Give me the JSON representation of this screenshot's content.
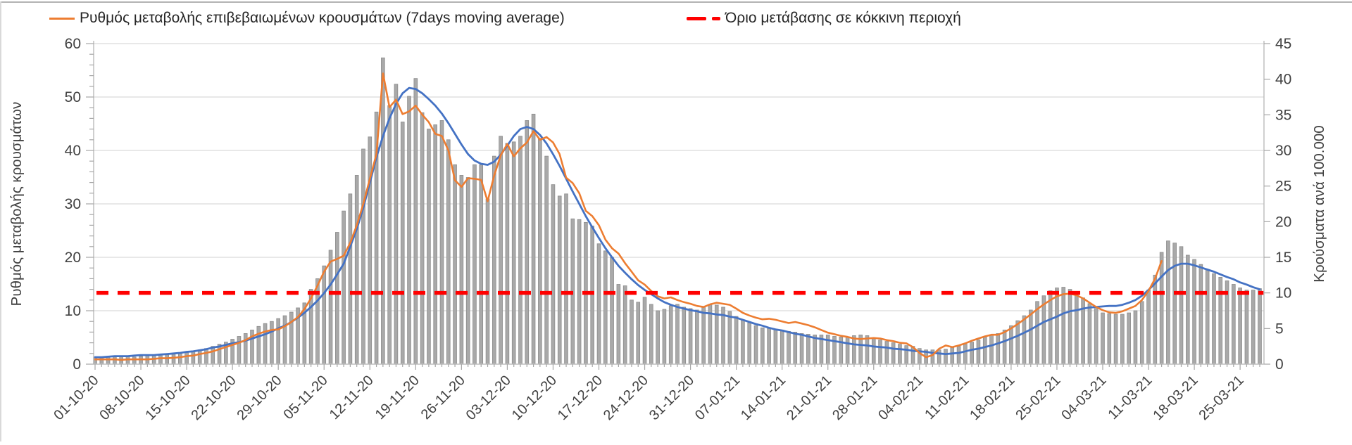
{
  "legend": {
    "items": [
      {
        "label": "Ρυθμός μεταβολής επιβεβαιωμένων κρουσμάτων (7days moving average)",
        "marker": "orange-line"
      },
      {
        "label": "Όριο μετάβασης σε κόκκινη περιοχή",
        "marker": "red-dashed-line"
      }
    ]
  },
  "colors": {
    "bar_fill": "#A9A9A9",
    "bar_stroke": "#8C8C8C",
    "moving_average_line": "#ED7D31",
    "trend_line": "#4472C4",
    "threshold_line": "#FF0000",
    "gridline": "#D9D9D9",
    "axis_line": "#BFBFBF",
    "tick_mark": "#A6A6A6",
    "tick_text": "#404040"
  },
  "chart_data": {
    "type": "combo_bar_line",
    "title": "",
    "grid": "horizontal gridlines at left-axis major ticks",
    "legend_position": "top",
    "x_axis": {
      "label": "",
      "unit": "daily points, weekly labeled ticks",
      "tick_labels": [
        "01-10-20",
        "08-10-20",
        "15-10-20",
        "22-10-20",
        "29-10-20",
        "05-11-20",
        "12-11-20",
        "19-11-20",
        "26-11-20",
        "03-12-20",
        "10-12-20",
        "17-12-20",
        "24-12-20",
        "31-12-20",
        "07-01-21",
        "14-01-21",
        "21-01-21",
        "28-01-21",
        "04-02-21",
        "11-02-21",
        "18-02-21",
        "25-02-21",
        "04-03-21",
        "11-03-21",
        "18-03-21",
        "25-03-21"
      ]
    },
    "y_axis_left": {
      "label": "Ρυθμός μεταβολής κρουσμάτων",
      "min": 0,
      "max": 60,
      "ticks": [
        0,
        10,
        20,
        30,
        40,
        50,
        60
      ],
      "minor_tick_step": 2
    },
    "y_axis_right": {
      "label": "Κρούσματα ανά 100.000",
      "min": 0,
      "max": 45,
      "ticks": [
        0,
        5,
        10,
        15,
        20,
        25,
        30,
        35,
        40,
        45
      ]
    },
    "threshold_line": {
      "label": "Όριο μετάβασης σε κόκκινη περιοχή",
      "axis": "right",
      "value": 10,
      "color": "#FF0000",
      "style": "dashed"
    },
    "bars": {
      "name": "Κρούσματα ανά 100.000 (gray daily bars)",
      "axis": "right",
      "values": [
        1.0,
        1.0,
        1.1,
        1.0,
        1.1,
        1.1,
        1.0,
        1.1,
        1.2,
        1.2,
        1.3,
        1.3,
        1.4,
        1.5,
        1.6,
        1.8,
        2.0,
        2.2,
        2.5,
        2.8,
        3.1,
        3.5,
        3.9,
        4.3,
        4.8,
        5.3,
        5.7,
        6.0,
        6.4,
        6.8,
        7.3,
        7.9,
        8.6,
        10.5,
        12.0,
        13.8,
        16.0,
        18.5,
        21.5,
        23.9,
        26.5,
        30.2,
        31.9,
        35.4,
        43.0,
        36.3,
        39.3,
        34.0,
        37.6,
        40.1,
        35.3,
        33.0,
        33.6,
        34.2,
        31.5,
        28.0,
        26.5,
        26.2,
        28.0,
        28.0,
        23.2,
        29.2,
        32.0,
        31.0,
        31.2,
        32.0,
        34.2,
        35.1,
        31.7,
        29.2,
        25.2,
        23.6,
        23.9,
        20.4,
        20.3,
        19.9,
        19.4,
        16.9,
        15.9,
        15.0,
        11.2,
        11.0,
        9.0,
        8.7,
        9.4,
        8.4,
        7.5,
        7.7,
        8.2,
        8.4,
        8.0,
        7.8,
        7.6,
        8.0,
        8.4,
        8.3,
        8.0,
        7.4,
        6.7,
        6.2,
        5.8,
        5.4,
        5.1,
        5.0,
        4.9,
        4.8,
        4.6,
        4.5,
        4.3,
        4.2,
        4.1,
        4.1,
        4.1,
        3.9,
        3.8,
        3.8,
        4.0,
        4.1,
        4.0,
        3.7,
        3.4,
        3.2,
        3.0,
        2.8,
        2.6,
        2.5,
        2.2,
        2.0,
        2.0,
        2.0,
        2.1,
        2.3,
        2.5,
        2.8,
        3.1,
        3.4,
        3.8,
        4.1,
        4.3,
        4.8,
        5.4,
        6.1,
        6.8,
        7.6,
        8.8,
        9.6,
        10.3,
        10.7,
        10.8,
        10.5,
        10.0,
        9.3,
        8.5,
        7.8,
        7.2,
        7.1,
        7.0,
        7.0,
        7.2,
        7.5,
        8.8,
        10.4,
        12.5,
        15.7,
        17.3,
        17.0,
        16.5,
        15.3,
        14.7,
        14.0,
        13.3,
        12.7,
        12.2,
        11.7,
        11.2,
        10.7,
        10.4,
        10.4,
        10.6
      ]
    },
    "series": [
      {
        "name": "Ρυθμός μεταβολής επιβεβαιωμένων κρουσμάτων (7days moving average)",
        "axis": "left",
        "color": "#ED7D31",
        "values": [
          0.9,
          0.9,
          0.9,
          0.9,
          0.8,
          0.9,
          0.9,
          0.9,
          0.9,
          1.0,
          1.1,
          1.1,
          1.2,
          1.3,
          1.5,
          1.6,
          1.9,
          2.1,
          2.4,
          2.8,
          3.2,
          3.6,
          4.0,
          4.5,
          5.2,
          5.7,
          6.1,
          6.4,
          6.5,
          7.1,
          7.9,
          8.8,
          10.3,
          12.3,
          14.7,
          17.3,
          19.2,
          19.7,
          20.3,
          22.7,
          26.0,
          30.0,
          34.7,
          39.3,
          54.4,
          48.1,
          49.5,
          46.8,
          47.3,
          48.4,
          46.7,
          45.3,
          43.1,
          42.7,
          40.0,
          34.4,
          33.2,
          34.8,
          34.7,
          34.5,
          30.5,
          35.3,
          39.1,
          41.2,
          38.9,
          40.4,
          41.5,
          43.6,
          42.0,
          42.5,
          41.5,
          39.3,
          34.9,
          33.9,
          32.0,
          28.7,
          27.7,
          26.0,
          23.3,
          21.7,
          20.7,
          18.9,
          17.3,
          15.7,
          14.9,
          13.7,
          12.7,
          12.3,
          12.5,
          12.0,
          11.6,
          11.3,
          10.9,
          10.7,
          11.2,
          11.5,
          11.3,
          11.1,
          10.4,
          9.6,
          9.1,
          8.7,
          8.4,
          8.5,
          8.3,
          8.0,
          7.7,
          7.9,
          7.6,
          7.3,
          6.9,
          6.4,
          5.9,
          5.6,
          5.3,
          5.1,
          4.8,
          4.7,
          4.8,
          4.9,
          4.8,
          4.5,
          4.3,
          4.0,
          3.9,
          3.2,
          2.1,
          1.3,
          1.7,
          2.9,
          3.5,
          3.2,
          3.5,
          3.9,
          4.4,
          4.8,
          5.2,
          5.5,
          5.5,
          6.0,
          6.7,
          7.5,
          8.4,
          9.3,
          10.3,
          11.2,
          12.0,
          12.7,
          13.1,
          13.2,
          12.9,
          12.3,
          11.5,
          10.7,
          10.1,
          9.7,
          9.6,
          9.9,
          10.4,
          10.9,
          12.0,
          13.7,
          16.0,
          19.3
        ]
      },
      {
        "name": "smoothed trend line (blue, no legend entry)",
        "axis": "left",
        "color": "#4472C4",
        "values": [
          1.3,
          1.3,
          1.4,
          1.5,
          1.5,
          1.5,
          1.6,
          1.7,
          1.7,
          1.7,
          1.8,
          1.9,
          2.0,
          2.1,
          2.3,
          2.4,
          2.6,
          2.8,
          3.1,
          3.3,
          3.6,
          3.9,
          4.1,
          4.4,
          4.8,
          5.2,
          5.6,
          6.1,
          6.7,
          7.2,
          7.9,
          8.7,
          9.6,
          10.7,
          11.9,
          13.3,
          14.9,
          16.8,
          18.8,
          22.0,
          25.3,
          29.3,
          34.0,
          38.7,
          42.7,
          46.0,
          48.7,
          50.7,
          51.7,
          51.5,
          50.7,
          49.6,
          48.4,
          46.9,
          45.1,
          43.1,
          41.1,
          39.3,
          38.1,
          37.5,
          37.3,
          37.9,
          39.2,
          40.9,
          42.7,
          44.0,
          44.4,
          44.0,
          42.9,
          41.3,
          39.3,
          37.1,
          34.7,
          32.3,
          30.0,
          27.7,
          25.6,
          23.6,
          21.7,
          20.0,
          18.4,
          17.1,
          15.9,
          14.8,
          13.9,
          13.1,
          12.3,
          11.6,
          11.1,
          10.7,
          10.4,
          10.1,
          9.9,
          9.6,
          9.5,
          9.3,
          9.2,
          8.9,
          8.7,
          8.3,
          7.9,
          7.5,
          7.2,
          6.8,
          6.5,
          6.3,
          6.0,
          5.7,
          5.5,
          5.2,
          4.9,
          4.7,
          4.5,
          4.3,
          4.1,
          3.9,
          3.7,
          3.6,
          3.5,
          3.3,
          3.2,
          3.1,
          2.9,
          2.8,
          2.7,
          2.5,
          2.4,
          2.3,
          2.1,
          2.0,
          1.9,
          2.0,
          2.1,
          2.4,
          2.7,
          2.9,
          3.2,
          3.5,
          3.9,
          4.3,
          4.8,
          5.3,
          5.9,
          6.5,
          7.2,
          7.9,
          8.4,
          8.9,
          9.5,
          9.9,
          10.1,
          10.4,
          10.6,
          10.7,
          10.8,
          10.9,
          10.9,
          11.1,
          11.5,
          12.0,
          12.8,
          13.9,
          15.1,
          16.4,
          17.6,
          18.4,
          18.8,
          18.8,
          18.5,
          18.1,
          17.7,
          17.3,
          16.8,
          16.3,
          15.9,
          15.3,
          14.9,
          14.4,
          14.0
        ]
      }
    ]
  }
}
